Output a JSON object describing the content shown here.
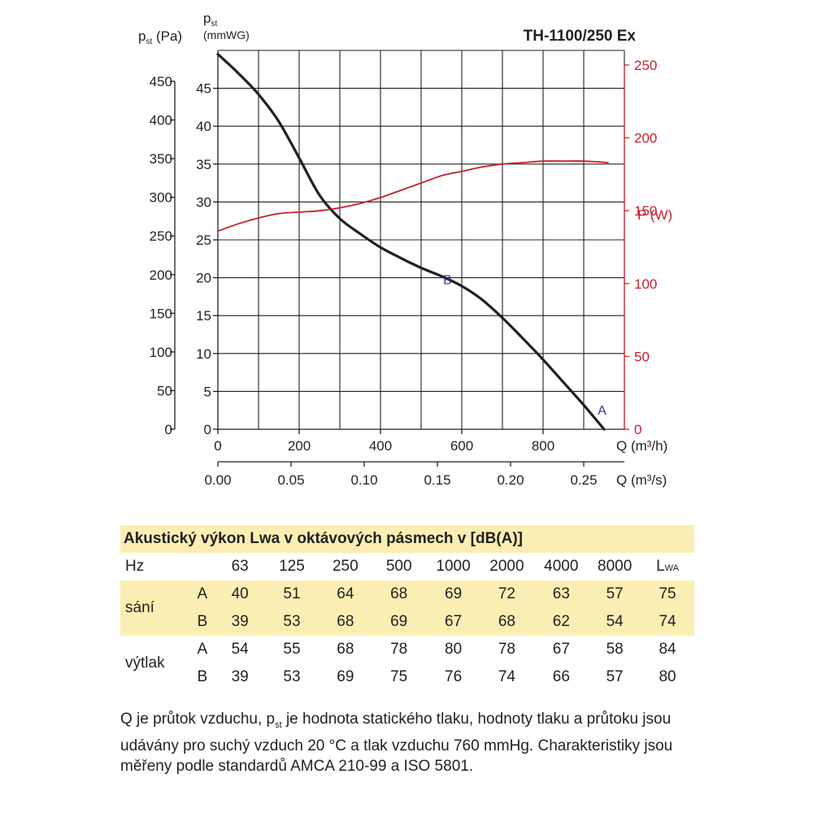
{
  "chart_data": {
    "type": "line",
    "title": "TH-1100/250 Ex",
    "xlabel": "Q (m³/h)",
    "xlabel2": "Q (m³/s)",
    "ylabel_left_pa": "p_st (Pa)",
    "ylabel_left_mmwg": "p_st (mmWG)",
    "ylabel_right": "P (W)",
    "xlim": [
      0,
      1000
    ],
    "ylim_mmwg": [
      0,
      50
    ],
    "ylim_pa": [
      0,
      490
    ],
    "ylim_power": [
      0,
      260
    ],
    "x_ticks": [
      "0",
      "200",
      "400",
      "600",
      "800"
    ],
    "x2_ticks": [
      "0.00",
      "0.05",
      "0.10",
      "0.15",
      "0.20",
      "0.25"
    ],
    "y_pa_ticks": [
      "0",
      "50",
      "100",
      "150",
      "200",
      "250",
      "300",
      "350",
      "400",
      "450"
    ],
    "y_mmwg_ticks": [
      "0",
      "5",
      "10",
      "15",
      "20",
      "25",
      "30",
      "35",
      "40",
      "45"
    ],
    "y_power_ticks": [
      "0",
      "50",
      "100",
      "150",
      "200",
      "250"
    ],
    "grid": true,
    "series": [
      {
        "id": "pressure",
        "color": "#231f20",
        "x": [
          0,
          50,
          100,
          150,
          200,
          250,
          300,
          350,
          400,
          450,
          500,
          550,
          600,
          650,
          700,
          750,
          800,
          850,
          900,
          950
        ],
        "y": [
          49.5,
          47.0,
          44.2,
          40.6,
          35.8,
          30.9,
          27.8,
          25.8,
          24.0,
          22.6,
          21.3,
          20.2,
          18.9,
          17.1,
          14.7,
          12.0,
          9.2,
          6.2,
          3.2,
          0
        ]
      },
      {
        "id": "power",
        "color": "#c8202c",
        "x": [
          0,
          50,
          100,
          150,
          200,
          250,
          300,
          350,
          400,
          450,
          500,
          550,
          600,
          650,
          700,
          750,
          800,
          850,
          900,
          960
        ],
        "y": [
          136,
          141,
          145,
          148,
          149,
          150,
          152,
          155,
          159,
          164,
          169,
          174,
          177,
          180,
          182,
          183,
          184,
          184,
          184,
          183
        ]
      }
    ],
    "points": [
      {
        "label": "B",
        "x": 565,
        "y": 19.8
      },
      {
        "label": "A",
        "x": 945,
        "y": 2.6
      }
    ]
  },
  "acoustic": {
    "title": "Akustický výkon Lwa v oktávových pásmech v [dB(A)]",
    "hz_label": "Hz",
    "frequencies": [
      "63",
      "125",
      "250",
      "500",
      "1000",
      "2000",
      "4000",
      "8000"
    ],
    "lwa_label": "L",
    "lwa_sub": "WA",
    "groups": [
      {
        "name": "sání",
        "rows": [
          {
            "label": "A",
            "values": [
              "40",
              "51",
              "64",
              "68",
              "69",
              "72",
              "63",
              "57",
              "75"
            ]
          },
          {
            "label": "B",
            "values": [
              "39",
              "53",
              "68",
              "69",
              "67",
              "68",
              "62",
              "54",
              "74"
            ]
          }
        ]
      },
      {
        "name": "výtlak",
        "rows": [
          {
            "label": "A",
            "values": [
              "54",
              "55",
              "68",
              "78",
              "80",
              "78",
              "67",
              "58",
              "84"
            ]
          },
          {
            "label": "B",
            "values": [
              "39",
              "53",
              "69",
              "75",
              "76",
              "74",
              "66",
              "57",
              "80"
            ]
          }
        ]
      }
    ]
  },
  "footnote": {
    "part1": "Q je průtok vzduchu, p",
    "sub": "st",
    "part2": " je hodnota statického tlaku, hodnoty tlaku a průtoku jsou udávány pro suchý vzduch 20 °C a tlak vzduchu 760 mmHg. Charakteristiky jsou měřeny podle standardů AMCA 210-99 a ISO 5801."
  }
}
